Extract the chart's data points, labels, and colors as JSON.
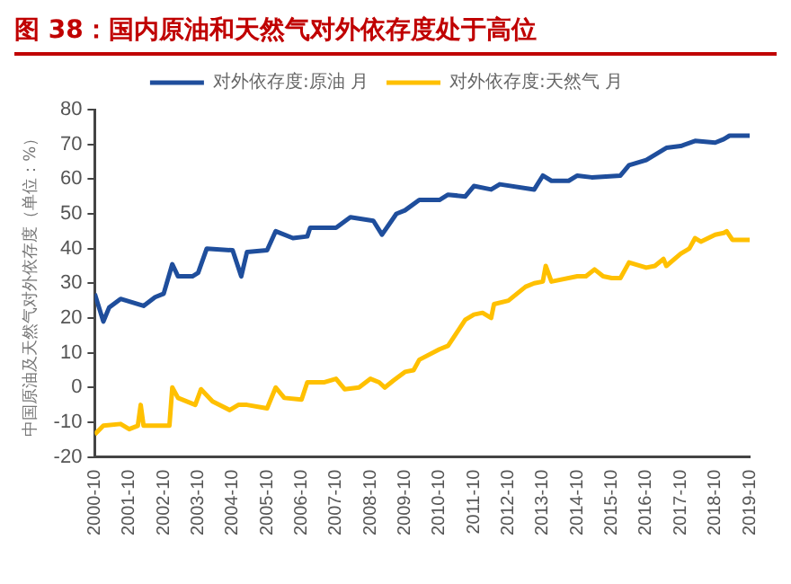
{
  "chart_data": {
    "type": "line",
    "title": "图 38：国内原油和天然气对外依存度处于高位",
    "ylabel": "中国原油及天然气对外依存度（单位：%）",
    "ylim": [
      -20,
      80
    ],
    "yticks": [
      -20,
      -10,
      0,
      10,
      20,
      30,
      40,
      50,
      60,
      70,
      80
    ],
    "xlim": [
      "2000-10",
      "2019-10"
    ],
    "xticks": [
      "2000-10",
      "2001-10",
      "2002-10",
      "2003-10",
      "2004-10",
      "2005-10",
      "2006-10",
      "2007-10",
      "2008-10",
      "2009-10",
      "2010-10",
      "2011-10",
      "2012-10",
      "2013-10",
      "2014-10",
      "2015-10",
      "2016-10",
      "2017-10",
      "2018-10",
      "2019-10"
    ],
    "grid": false,
    "legend": "top",
    "marker": "none",
    "line_style": "solid",
    "series": [
      {
        "name": "对外依存度:原油 月",
        "color": "#1f4e9c",
        "x": [
          "2000-10",
          "2001-01",
          "2001-03",
          "2001-07",
          "2002-03",
          "2002-07",
          "2002-10",
          "2003-01",
          "2003-03",
          "2003-08",
          "2003-10",
          "2004-01",
          "2004-10",
          "2005-01",
          "2005-03",
          "2005-10",
          "2006-01",
          "2006-07",
          "2006-12",
          "2007-01",
          "2007-10",
          "2008-03",
          "2008-11",
          "2009-02",
          "2009-07",
          "2009-10",
          "2010-03",
          "2010-10",
          "2011-01",
          "2011-07",
          "2011-10",
          "2012-04",
          "2012-07",
          "2013-07",
          "2013-10",
          "2014-01",
          "2014-07",
          "2014-10",
          "2015-03",
          "2016-01",
          "2016-04",
          "2016-10",
          "2017-05",
          "2017-10",
          "2018-03",
          "2018-10",
          "2019-01",
          "2019-03",
          "2019-10"
        ],
        "values": [
          27,
          19,
          23,
          25.5,
          23.5,
          26,
          27,
          35.5,
          32,
          32,
          33,
          40,
          39.5,
          32,
          39,
          39.5,
          45,
          43,
          43.5,
          46,
          46,
          49,
          48,
          44,
          50,
          51,
          54,
          54,
          55.5,
          55,
          58,
          57,
          58.5,
          57,
          61,
          59.5,
          59.5,
          61,
          60.5,
          61,
          64,
          65.5,
          69,
          69.5,
          71,
          70.5,
          71.5,
          72.5,
          72.5
        ]
      },
      {
        "name": "对外依存度:天然气 月",
        "color": "#ffc000",
        "x": [
          "2000-10",
          "2001-01",
          "2001-07",
          "2001-10",
          "2002-01",
          "2002-02",
          "2002-03",
          "2002-12",
          "2003-01",
          "2003-03",
          "2003-09",
          "2003-11",
          "2004-03",
          "2004-09",
          "2004-12",
          "2005-03",
          "2005-10",
          "2006-01",
          "2006-04",
          "2006-10",
          "2006-12",
          "2007-06",
          "2007-10",
          "2008-01",
          "2008-06",
          "2008-10",
          "2009-01",
          "2009-03",
          "2009-06",
          "2009-10",
          "2010-01",
          "2010-03",
          "2010-10",
          "2011-01",
          "2011-07",
          "2011-10",
          "2012-01",
          "2012-04",
          "2012-05",
          "2012-10",
          "2013-04",
          "2013-07",
          "2013-10",
          "2013-11",
          "2014-01",
          "2014-10",
          "2015-01",
          "2015-04",
          "2015-07",
          "2015-10",
          "2016-01",
          "2016-04",
          "2016-10",
          "2017-01",
          "2017-04",
          "2017-05",
          "2017-10",
          "2018-01",
          "2018-03",
          "2018-05",
          "2018-10",
          "2019-01",
          "2019-02",
          "2019-04",
          "2019-10"
        ],
        "values": [
          -13.5,
          -11,
          -10.5,
          -12,
          -11,
          -5,
          -11,
          -11,
          0,
          -3,
          -5,
          -0.5,
          -4,
          -6.5,
          -5,
          -5,
          -6,
          0,
          -3,
          -3.5,
          1.5,
          1.5,
          2.5,
          -0.5,
          0,
          2.5,
          1.5,
          0,
          2,
          4.5,
          5,
          8,
          11,
          12,
          19.5,
          21,
          21.5,
          20,
          24,
          25,
          29,
          30,
          30.5,
          35,
          30.5,
          32,
          32,
          34,
          32,
          31.5,
          31.5,
          36,
          34.5,
          35,
          37,
          35,
          38.5,
          40,
          43,
          42,
          44,
          44.5,
          45,
          42.5,
          42.5
        ]
      }
    ]
  }
}
